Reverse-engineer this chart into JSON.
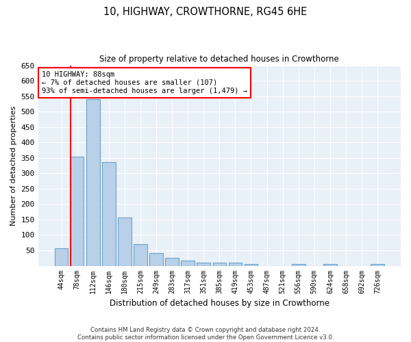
{
  "title": "10, HIGHWAY, CROWTHORNE, RG45 6HE",
  "subtitle": "Size of property relative to detached houses in Crowthorne",
  "xlabel": "Distribution of detached houses by size in Crowthorne",
  "ylabel": "Number of detached properties",
  "bar_color": "#b8d0e8",
  "bar_edge_color": "#6aa0c8",
  "background_color": "#e8f0f8",
  "grid_color": "#ffffff",
  "categories": [
    "44sqm",
    "78sqm",
    "112sqm",
    "146sqm",
    "180sqm",
    "215sqm",
    "249sqm",
    "283sqm",
    "317sqm",
    "351sqm",
    "385sqm",
    "419sqm",
    "453sqm",
    "487sqm",
    "521sqm",
    "556sqm",
    "590sqm",
    "624sqm",
    "658sqm",
    "692sqm",
    "726sqm"
  ],
  "values": [
    57,
    353,
    540,
    336,
    157,
    70,
    42,
    25,
    16,
    11,
    9,
    9,
    5,
    0,
    0,
    5,
    0,
    5,
    0,
    0,
    5
  ],
  "ylim": [
    0,
    650
  ],
  "yticks": [
    0,
    50,
    100,
    150,
    200,
    250,
    300,
    350,
    400,
    450,
    500,
    550,
    600,
    650
  ],
  "marker_bar_index": 1,
  "marker_label_line1": "10 HIGHWAY: 88sqm",
  "marker_label_line2": "← 7% of detached houses are smaller (107)",
  "marker_label_line3": "93% of semi-detached houses are larger (1,479) →",
  "footer_line1": "Contains HM Land Registry data © Crown copyright and database right 2024.",
  "footer_line2": "Contains public sector information licensed under the Open Government Licence v3.0."
}
